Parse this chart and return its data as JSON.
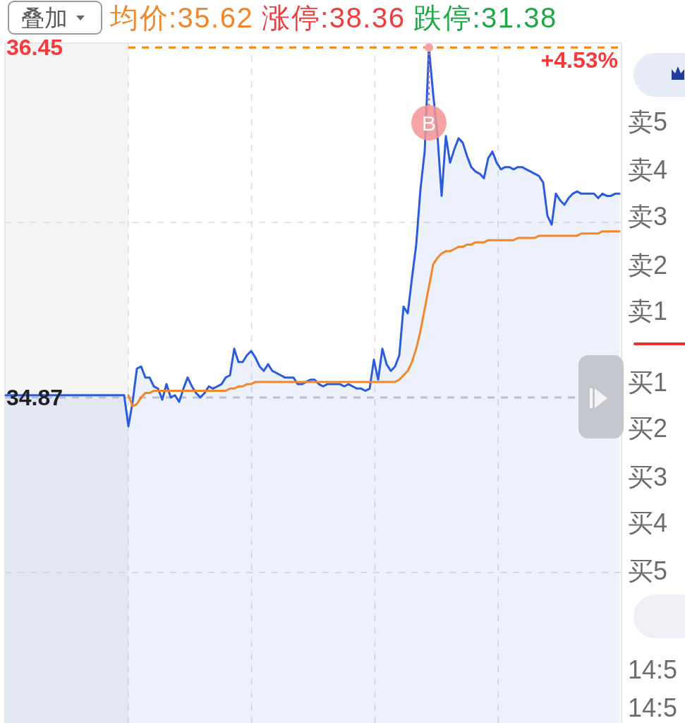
{
  "chart_data": [
    {
      "type": "area",
      "categories": [
        null,
        null,
        null,
        null,
        null,
        null,
        null,
        null,
        null,
        null,
        null,
        null,
        null,
        null,
        null,
        null,
        null,
        null,
        null,
        null,
        null,
        null,
        null,
        null,
        null,
        null,
        null,
        null,
        null,
        null,
        null,
        null,
        null,
        null,
        null,
        null,
        null,
        null,
        null,
        null,
        null,
        null,
        null,
        null,
        null,
        null,
        null,
        null,
        null,
        null,
        null,
        null,
        null,
        null,
        null,
        null,
        null,
        null,
        null,
        null,
        null,
        null,
        null,
        null,
        null,
        null,
        null,
        null,
        null,
        null,
        null,
        null,
        null,
        null,
        null,
        null,
        null,
        null,
        null,
        null,
        null,
        null,
        null,
        null,
        null,
        null,
        null,
        null,
        null,
        null,
        null,
        null,
        null,
        null,
        null,
        null,
        null,
        null,
        null,
        null,
        null,
        null,
        null,
        null,
        null,
        null,
        null,
        null,
        null,
        null,
        null,
        null,
        null,
        null,
        null,
        null,
        null,
        null,
        null,
        null,
        null,
        null,
        null,
        null,
        null,
        null,
        null,
        null,
        null,
        null,
        null,
        null,
        null,
        null,
        null,
        null,
        null,
        null,
        null,
        null,
        null,
        null,
        null,
        null,
        null,
        null
      ],
      "series": [
        {
          "type": "area",
          "color": "#2b5ce0",
          "values": [
            34.88,
            34.88,
            34.88,
            34.88,
            34.88,
            34.88,
            34.88,
            34.88,
            34.88,
            34.88,
            34.88,
            34.88,
            34.88,
            34.88,
            34.88,
            34.88,
            34.88,
            34.88,
            34.88,
            34.88,
            34.88,
            34.88,
            34.88,
            34.88,
            34.88,
            34.88,
            34.88,
            34.88,
            34.88,
            34.74,
            34.85,
            35.0,
            35.01,
            34.96,
            34.96,
            34.92,
            34.91,
            34.86,
            34.93,
            34.87,
            34.88,
            34.85,
            34.91,
            34.96,
            34.92,
            34.89,
            34.87,
            34.89,
            34.92,
            34.91,
            34.92,
            34.93,
            34.96,
            34.97,
            35.09,
            35.03,
            35.03,
            35.06,
            35.08,
            35.05,
            35.01,
            34.99,
            35.02,
            34.99,
            34.98,
            34.97,
            34.96,
            34.96,
            34.96,
            34.93,
            34.93,
            34.94,
            34.95,
            34.95,
            34.93,
            34.92,
            34.93,
            34.93,
            34.93,
            34.93,
            34.92,
            34.93,
            34.92,
            34.91,
            34.91,
            34.9,
            34.91,
            35.04,
            34.95,
            35.09,
            35.02,
            34.99,
            35.01,
            35.06,
            35.28,
            35.25,
            35.41,
            35.56,
            35.81,
            35.98,
            36.45,
            36.24,
            36.06,
            35.78,
            36.05,
            35.93,
            35.99,
            36.04,
            36.02,
            35.96,
            35.91,
            35.89,
            35.88,
            35.86,
            35.95,
            35.98,
            35.93,
            35.9,
            35.91,
            35.91,
            35.9,
            35.91,
            35.91,
            35.9,
            35.89,
            35.88,
            35.87,
            35.84,
            35.69,
            35.65,
            35.79,
            35.76,
            35.74,
            35.77,
            35.79,
            35.8,
            35.79,
            35.79,
            35.79,
            35.79,
            35.77,
            35.79,
            35.78,
            35.78,
            35.79,
            35.79
          ]
        },
        {
          "type": "line",
          "name": "均价:35.62",
          "color": "#f0872a",
          "values": [
            null,
            null,
            null,
            null,
            null,
            null,
            null,
            null,
            null,
            null,
            null,
            null,
            null,
            null,
            null,
            null,
            null,
            null,
            null,
            null,
            null,
            null,
            null,
            null,
            null,
            null,
            null,
            null,
            null,
            34.88,
            34.83,
            34.84,
            34.87,
            34.89,
            34.89,
            34.9,
            34.9,
            34.9,
            34.9,
            34.9,
            34.9,
            34.9,
            34.9,
            34.9,
            34.9,
            34.9,
            34.9,
            34.9,
            34.9,
            34.9,
            34.9,
            34.9,
            34.9,
            34.91,
            34.91,
            34.92,
            34.92,
            34.93,
            34.93,
            34.94,
            34.94,
            34.94,
            34.94,
            34.94,
            34.94,
            34.94,
            34.94,
            34.94,
            34.94,
            34.94,
            34.94,
            34.94,
            34.94,
            34.94,
            34.94,
            34.94,
            34.94,
            34.94,
            34.94,
            34.94,
            34.94,
            34.94,
            34.94,
            34.94,
            34.94,
            34.94,
            34.94,
            34.94,
            34.94,
            34.94,
            34.94,
            34.94,
            34.94,
            34.95,
            34.97,
            34.99,
            35.03,
            35.09,
            35.17,
            35.27,
            35.37,
            35.47,
            35.5,
            35.52,
            35.53,
            35.53,
            35.54,
            35.55,
            35.55,
            35.56,
            35.56,
            35.57,
            35.57,
            35.57,
            35.58,
            35.58,
            35.58,
            35.58,
            35.58,
            35.58,
            35.58,
            35.59,
            35.59,
            35.59,
            35.59,
            35.59,
            35.6,
            35.6,
            35.6,
            35.6,
            35.6,
            35.6,
            35.6,
            35.6,
            35.6,
            35.6,
            35.61,
            35.61,
            35.61,
            35.61,
            35.61,
            35.62,
            35.62,
            35.62,
            35.62,
            35.62
          ]
        },
        {
          "type": "scatter",
          "name": "B",
          "color": "#f59393",
          "values": [
            null,
            null,
            null,
            null,
            null,
            null,
            null,
            null,
            null,
            null,
            null,
            null,
            null,
            null,
            null,
            null,
            null,
            null,
            null,
            null,
            null,
            null,
            null,
            null,
            null,
            null,
            null,
            null,
            null,
            null,
            null,
            null,
            null,
            null,
            null,
            null,
            null,
            null,
            null,
            null,
            null,
            null,
            null,
            null,
            null,
            null,
            null,
            null,
            null,
            null,
            null,
            null,
            null,
            null,
            null,
            null,
            null,
            null,
            null,
            null,
            null,
            null,
            null,
            null,
            null,
            null,
            null,
            null,
            null,
            null,
            null,
            null,
            null,
            null,
            null,
            null,
            null,
            null,
            null,
            null,
            null,
            null,
            null,
            null,
            null,
            null,
            null,
            null,
            null,
            null,
            null,
            null,
            null,
            null,
            null,
            null,
            null,
            null,
            null,
            null,
            36.11,
            null,
            null,
            null,
            null,
            null,
            null,
            null,
            null,
            null,
            null,
            null,
            null,
            null,
            null,
            null,
            null,
            null,
            null,
            null,
            null,
            null,
            null,
            null,
            null,
            null,
            null,
            null,
            null,
            null,
            null,
            null,
            null,
            null,
            null,
            null,
            null,
            null,
            null,
            null,
            null,
            null,
            null,
            null,
            null,
            null
          ]
        }
      ],
      "ylim": [
        33.4,
        36.47
      ],
      "yticks": [
        36.45,
        {
          "value": 35.66,
          "label": null
        },
        34.87,
        {
          "value": 34.08,
          "label": null
        }
      ],
      "tick_labels": "y",
      "grid": true,
      "ref_lines": [
        {
          "axis": "y",
          "value": 36.45,
          "color": "#f5870f",
          "line_style": "dashed"
        },
        {
          "axis": "y",
          "value": 34.87,
          "color": "#c9c9cf",
          "line_style": "dashed"
        }
      ],
      "legend": "top left",
      "annotations": [
        "叠加",
        "涨停:38.36",
        "跌停:31.38",
        {
          "text": "+4.53%",
          "y": 36.45
        }
      ]
    },
    {
      "type": "other",
      "annotations": [
        "卖5",
        "卖4",
        "卖3",
        "卖2",
        "卖1",
        "买1",
        "买2",
        "买3",
        "买4",
        "买5",
        "14:5",
        "14:5"
      ]
    }
  ]
}
